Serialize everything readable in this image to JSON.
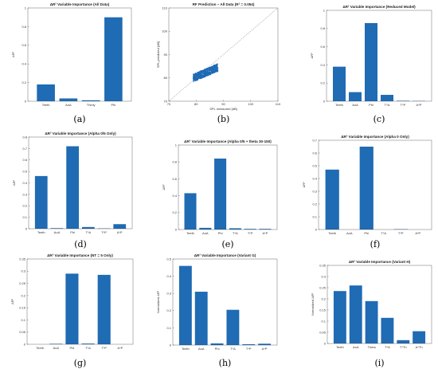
{
  "chart_data": [
    {
      "id": "a",
      "caption": "(a)",
      "type": "bar",
      "title": "ΔR² Variable Importance (All Data)",
      "ylabel": "ΔR²",
      "categories": [
        "Teeth",
        "AoA",
        "Thiniy",
        "Phi"
      ],
      "values": [
        0.18,
        0.03,
        0.01,
        0.9
      ],
      "ylim": [
        0,
        1
      ],
      "yticks": [
        "0",
        "0.2",
        "0.4",
        "0.6",
        "0.8",
        "1"
      ],
      "color": "#1f6bb4"
    },
    {
      "id": "b",
      "caption": "(b)",
      "type": "scatter",
      "title": "RF Prediction – All Data (R² = 0.054)",
      "xlabel": "SPL measured [dB]",
      "ylabel": "SPL predicted [dB]",
      "xlim": [
        70,
        110
      ],
      "ylim": [
        70,
        110
      ],
      "xticks": [
        "70",
        "80",
        "90",
        "100",
        "110"
      ],
      "yticks": [
        "70",
        "80",
        "90",
        "100",
        "110"
      ],
      "reference_line": "y = x",
      "point_cloud": {
        "x_range": [
          79,
          88
        ],
        "y_range": [
          80,
          85
        ]
      },
      "color": "#1f6bb4"
    },
    {
      "id": "c",
      "caption": "(c)",
      "type": "bar",
      "title": "ΔR² Variable Importance (Reduced Model)",
      "ylabel": "ΔR²",
      "categories": [
        "Teeth",
        "AoA",
        "Phi",
        "T*A",
        "T*P",
        "A*P"
      ],
      "values": [
        0.38,
        0.1,
        0.86,
        0.07,
        0.005,
        0.003
      ],
      "ylim": [
        0,
        1
      ],
      "yticks": [
        "0",
        "0.2",
        "0.4",
        "0.6",
        "0.8",
        "1"
      ],
      "color": "#1f6bb4"
    },
    {
      "id": "d",
      "caption": "(d)",
      "type": "bar",
      "title": "ΔR² Variable Importance (Alpha 0/5 Only)",
      "ylabel": "ΔR²",
      "categories": [
        "Teeth",
        "AoA",
        "Phi",
        "T*A",
        "T*P",
        "A*P"
      ],
      "values": [
        0.46,
        0.005,
        0.72,
        0.015,
        0.003,
        0.04
      ],
      "ylim": [
        0,
        0.8
      ],
      "yticks": [
        "0",
        "0.1",
        "0.2",
        "0.3",
        "0.4",
        "0.5",
        "0.6",
        "0.7",
        "0.8"
      ],
      "color": "#1f6bb4"
    },
    {
      "id": "e",
      "caption": "(e)",
      "type": "bar",
      "title": "ΔR² Variable Importance (Alpha 0/5 + theta 30-150)",
      "ylabel": "ΔR²",
      "categories": [
        "Teeth",
        "AoA",
        "Phi",
        "T*A",
        "T*P",
        "A*P"
      ],
      "values": [
        0.43,
        0.02,
        0.84,
        0.015,
        0.008,
        0.008
      ],
      "ylim": [
        0,
        1
      ],
      "yticks": [
        "0",
        "0.2",
        "0.4",
        "0.6",
        "0.8",
        "1"
      ],
      "color": "#1f6bb4"
    },
    {
      "id": "f",
      "caption": "(f)",
      "type": "bar",
      "title": "ΔR² Variable Importance (Alpha 0 Only)",
      "ylabel": "ΔR²",
      "categories": [
        "Teeth",
        "AoA",
        "Phi",
        "T*A",
        "T*P",
        "A*P"
      ],
      "values": [
        0.47,
        0,
        0.65,
        0,
        0.003,
        0
      ],
      "ylim": [
        0,
        0.7
      ],
      "yticks": [
        "0",
        "0.1",
        "0.2",
        "0.3",
        "0.4",
        "0.5",
        "0.6",
        "0.7"
      ],
      "color": "#1f6bb4"
    },
    {
      "id": "g",
      "caption": "(g)",
      "type": "bar",
      "title": "ΔR² Variable Importance (NT = 5 Only)",
      "ylabel": "ΔR²",
      "categories": [
        "Teeth",
        "AoA",
        "Phi",
        "T*A",
        "T*P",
        "A*P"
      ],
      "values": [
        0,
        0.002,
        0.29,
        0.003,
        0.285,
        0
      ],
      "ylim": [
        0,
        0.35
      ],
      "yticks": [
        "0",
        "0.05",
        "0.1",
        "0.15",
        "0.2",
        "0.25",
        "0.3",
        "0.35"
      ],
      "color": "#1f6bb4"
    },
    {
      "id": "h",
      "caption": "(h)",
      "type": "bar",
      "title": "ΔR² Variable Importance (Variant G)",
      "ylabel": "Normalized ΔR²",
      "categories": [
        "Teeth",
        "AoA",
        "Phi",
        "T*A",
        "T*P",
        "A*P"
      ],
      "values": [
        0.46,
        0.31,
        0.01,
        0.205,
        0.005,
        0.008
      ],
      "ylim": [
        0,
        0.5
      ],
      "yticks": [
        "0",
        "0.1",
        "0.2",
        "0.3",
        "0.4",
        "0.5"
      ],
      "color": "#1f6bb4"
    },
    {
      "id": "i",
      "caption": "(i)",
      "type": "bar",
      "title": "ΔR² Variable Importance (Variant H)",
      "ylabel": "Normalized ΔR²",
      "categories": [
        "Teeth",
        "AoA",
        "Theta",
        "T*A",
        "T*Th",
        "A*Th"
      ],
      "values": [
        0.235,
        0.26,
        0.19,
        0.115,
        0.015,
        0.055
      ],
      "ylim": [
        0,
        0.35
      ],
      "yticks": [
        "0",
        "0.05",
        "0.1",
        "0.15",
        "0.2",
        "0.25",
        "0.3",
        "0.35"
      ],
      "color": "#1f6bb4"
    }
  ]
}
